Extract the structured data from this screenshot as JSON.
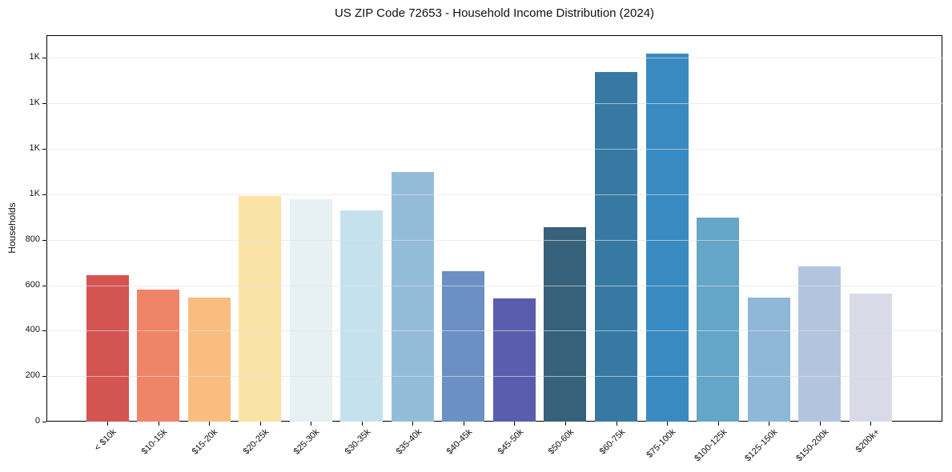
{
  "chart_data": {
    "type": "bar",
    "title": "US ZIP Code 72653 - Household Income Distribution (2024)",
    "xlabel": "",
    "ylabel": "Households",
    "categories": [
      "< $10k",
      "$10-15k",
      "$15-20k",
      "$20-25k",
      "$25-30k",
      "$30-35k",
      "$35-40k",
      "$40-45k",
      "$45-50k",
      "$50-60k",
      "$60-75k",
      "$75-100k",
      "$100-125k",
      "$125-150k",
      "$150-200k",
      "$200k+"
    ],
    "values": [
      645,
      580,
      547,
      994,
      980,
      929,
      1098,
      662,
      541,
      857,
      1537,
      1618,
      898,
      546,
      682,
      562
    ],
    "bar_colors": [
      "#d45452",
      "#f08467",
      "#f9bd80",
      "#fbe3a7",
      "#e7f1f4",
      "#c5e1ee",
      "#93bcd9",
      "#6c90c4",
      "#5a5dad",
      "#37617a",
      "#3779a3",
      "#388ac1",
      "#64a5c8",
      "#8fb7d8",
      "#b3c5de",
      "#d8dae7"
    ],
    "ylim": [
      0,
      1700
    ],
    "y_ticks": [
      {
        "value": 0,
        "label": "0"
      },
      {
        "value": 200,
        "label": "200"
      },
      {
        "value": 400,
        "label": "400"
      },
      {
        "value": 600,
        "label": "600"
      },
      {
        "value": 800,
        "label": "800"
      },
      {
        "value": 1000,
        "label": "1K"
      },
      {
        "value": 1200,
        "label": "1K"
      },
      {
        "value": 1400,
        "label": "1K"
      },
      {
        "value": 1600,
        "label": "1K"
      }
    ],
    "grid": "horizontal",
    "gridline_color": "#e8e8e8",
    "spine_color": "#000000",
    "background": "#ffffff",
    "legend": "none"
  }
}
